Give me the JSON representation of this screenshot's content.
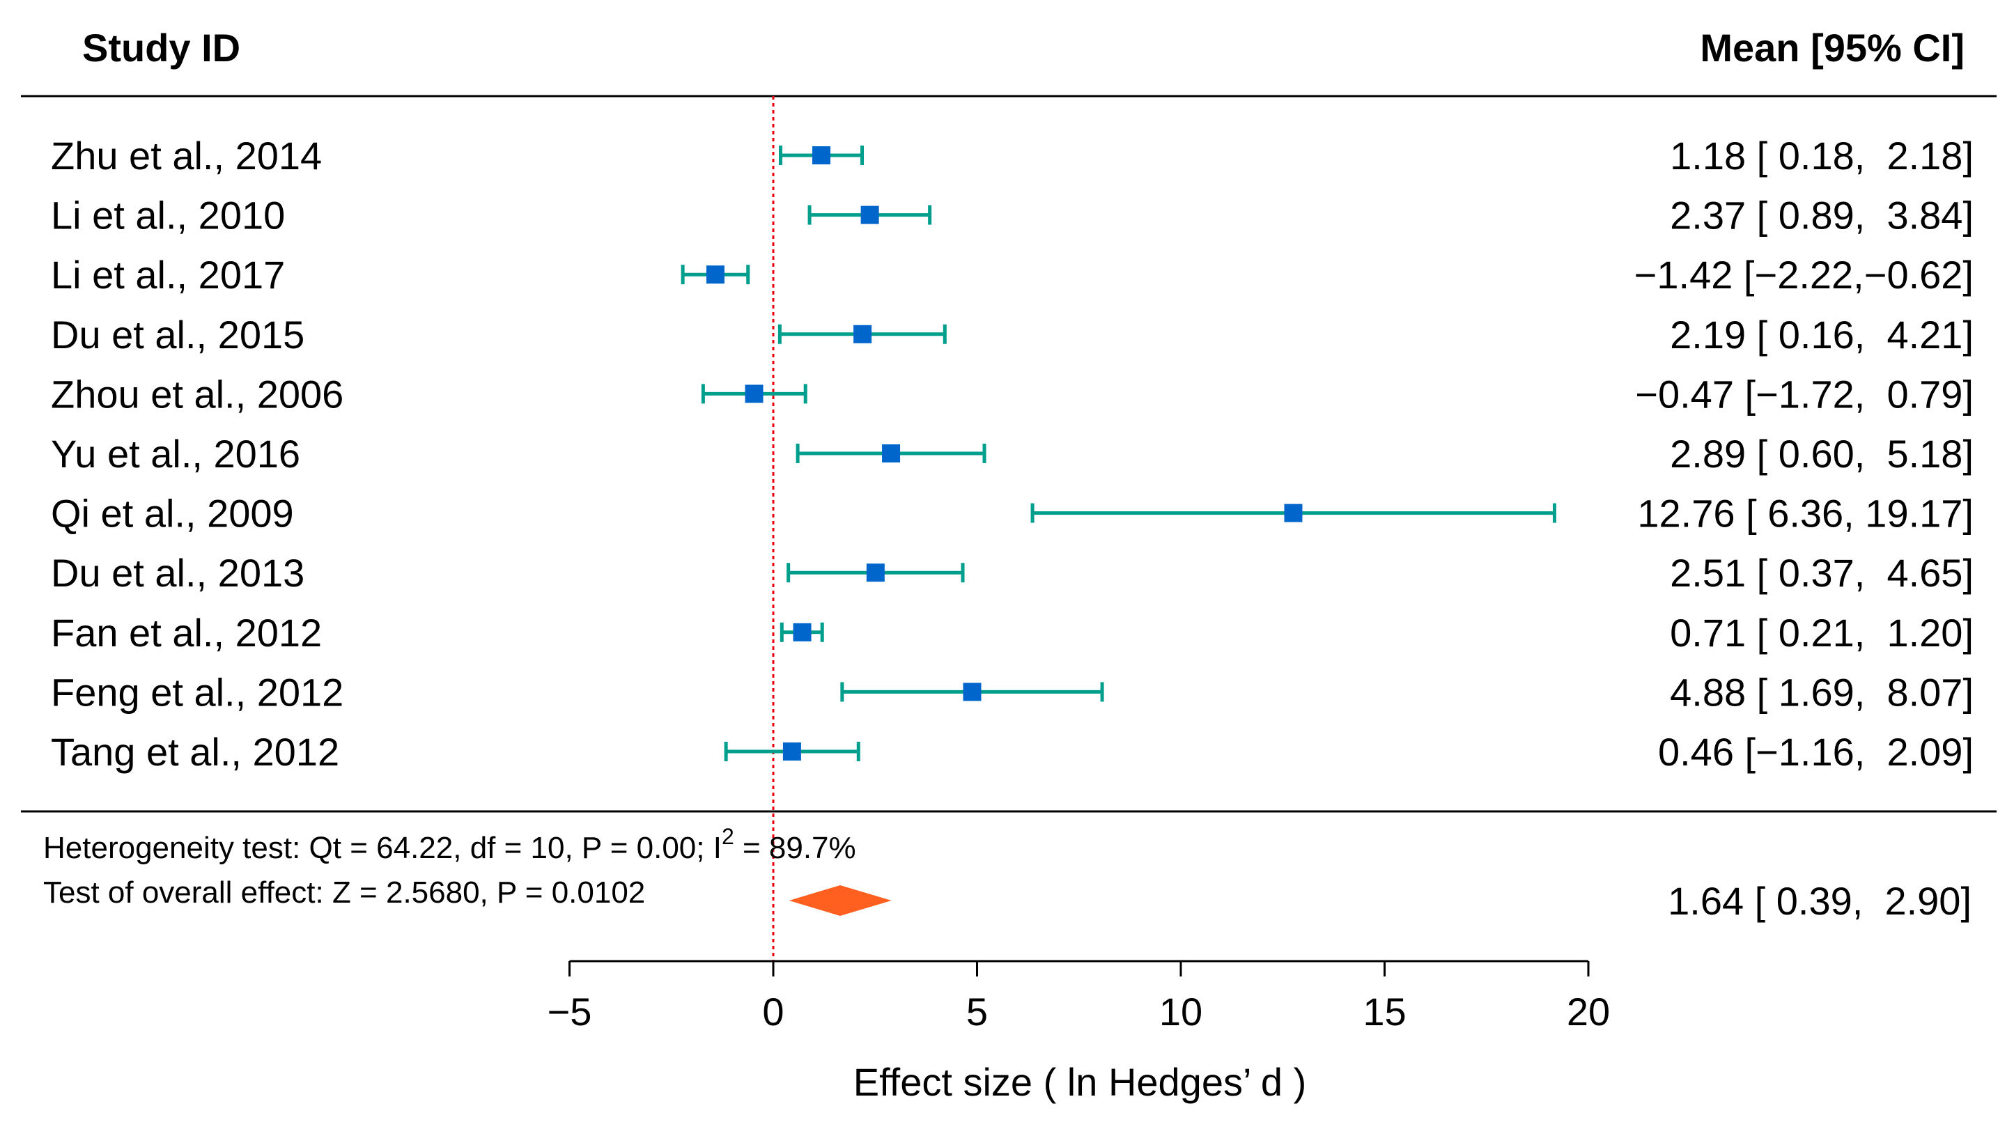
{
  "colors": {
    "ci": "#009E8C",
    "point": "#0066CC",
    "summary": "#FF5F1F",
    "null_line": "#E8000B",
    "rule": "#000000"
  },
  "header": {
    "left": "Study ID",
    "right": "Mean [95% CI]"
  },
  "stats": {
    "heterogeneity_pre": "Heterogeneity test: Qt = 64.22, df = 10, P = 0.00; I",
    "heterogeneity_sup": "2",
    "heterogeneity_post": " = 89.7%",
    "overall": "Test of overall effect: Z = 2.5680, P = 0.0102"
  },
  "chart_data": {
    "type": "forest",
    "xlabel": "Effect size ( ln Hedges’ d )",
    "xlim": [
      -5,
      20
    ],
    "xticks": [
      -5,
      0,
      5,
      10,
      15,
      20
    ],
    "xtick_labels": [
      "−5",
      "0",
      "5",
      "10",
      "15",
      "20"
    ],
    "null_value": 0,
    "studies": [
      {
        "label": "Zhu et al., 2014",
        "mean": 1.18,
        "lower": 0.18,
        "upper": 2.18,
        "text": "1.18 [ 0.18,  2.18]"
      },
      {
        "label": "Li et al., 2010",
        "mean": 2.37,
        "lower": 0.89,
        "upper": 3.84,
        "text": "2.37 [ 0.89,  3.84]"
      },
      {
        "label": "Li et al., 2017",
        "mean": -1.42,
        "lower": -2.22,
        "upper": -0.62,
        "text": "−1.42 [−2.22,−0.62]"
      },
      {
        "label": "Du et al., 2015",
        "mean": 2.19,
        "lower": 0.16,
        "upper": 4.21,
        "text": "2.19 [ 0.16,  4.21]"
      },
      {
        "label": "Zhou et al., 2006",
        "mean": -0.47,
        "lower": -1.72,
        "upper": 0.79,
        "text": "−0.47 [−1.72,  0.79]"
      },
      {
        "label": "Yu et al., 2016",
        "mean": 2.89,
        "lower": 0.6,
        "upper": 5.18,
        "text": "2.89 [ 0.60,  5.18]"
      },
      {
        "label": "Qi et al., 2009",
        "mean": 12.76,
        "lower": 6.36,
        "upper": 19.17,
        "text": "12.76 [ 6.36, 19.17]"
      },
      {
        "label": "Du et al., 2013",
        "mean": 2.51,
        "lower": 0.37,
        "upper": 4.65,
        "text": "2.51 [ 0.37,  4.65]"
      },
      {
        "label": "Fan et al., 2012",
        "mean": 0.71,
        "lower": 0.21,
        "upper": 1.2,
        "text": "0.71 [ 0.21,  1.20]"
      },
      {
        "label": "Feng et al., 2012",
        "mean": 4.88,
        "lower": 1.69,
        "upper": 8.07,
        "text": "4.88 [ 1.69,  8.07]"
      },
      {
        "label": "Tang et al., 2012",
        "mean": 0.46,
        "lower": -1.16,
        "upper": 2.09,
        "text": "0.46 [−1.16,  2.09]"
      }
    ],
    "summary": {
      "mean": 1.64,
      "lower": 0.39,
      "upper": 2.9,
      "text": "1.64 [ 0.39,  2.90]"
    }
  }
}
